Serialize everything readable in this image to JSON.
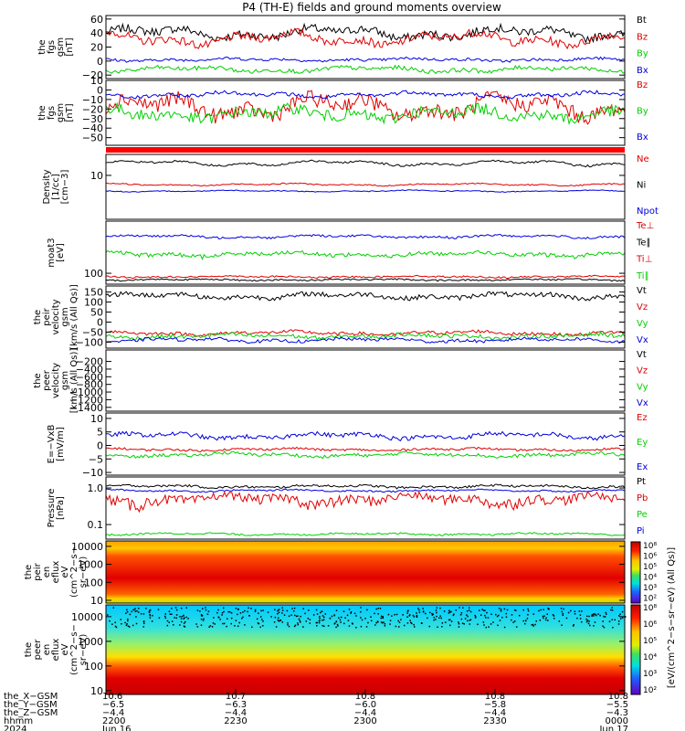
{
  "title": "P4 (TH-E) fields and ground moments overview",
  "colors": {
    "black": "#000000",
    "red": "#e00000",
    "green": "#00d000",
    "blue": "#0000e0",
    "strip": "#ff0000"
  },
  "panels": [
    {
      "id": "fgs-gsm",
      "ylabel": [
        "the",
        "fgs",
        "gsm",
        "[nT]"
      ],
      "scale": "linear",
      "ylim": [
        -25,
        65
      ],
      "ticks": [
        {
          "value": 60,
          "label": "60"
        },
        {
          "value": 40,
          "label": "40"
        },
        {
          "value": 20,
          "label": "20"
        },
        {
          "value": 0,
          "label": "0"
        },
        {
          "value": -20,
          "label": "−20"
        }
      ],
      "legend": [
        {
          "label": "Bt",
          "color": "black"
        },
        {
          "label": "Bz",
          "color": "red"
        },
        {
          "label": "By",
          "color": "green"
        },
        {
          "label": "Bx",
          "color": "blue"
        }
      ],
      "series": [
        {
          "color": "black",
          "mean": 40,
          "amp": 9,
          "wiggle": 6
        },
        {
          "color": "red",
          "mean": 32,
          "amp": 10,
          "wiggle": 6
        },
        {
          "color": "blue",
          "mean": 2,
          "amp": 2,
          "wiggle": 2
        },
        {
          "color": "green",
          "mean": -12,
          "amp": 4,
          "wiggle": 3
        }
      ]
    },
    {
      "id": "fgs-gsm-zoom",
      "ylabel": [
        "the",
        "fgs",
        "gsm",
        "[nT]"
      ],
      "scale": "linear",
      "ylim": [
        -58,
        10
      ],
      "ticks": [
        {
          "value": 10,
          "label": "10"
        },
        {
          "value": 0,
          "label": "0"
        },
        {
          "value": -10,
          "label": "−10"
        },
        {
          "value": -20,
          "label": "−20"
        },
        {
          "value": -30,
          "label": "−30"
        },
        {
          "value": -40,
          "label": "−40"
        },
        {
          "value": -50,
          "label": "−50"
        }
      ],
      "legend": [
        {
          "label": "Bz",
          "color": "red"
        },
        {
          "label": "By",
          "color": "green"
        },
        {
          "label": "Bx",
          "color": "blue"
        }
      ],
      "series": [
        {
          "color": "red",
          "mean": -18,
          "amp": 12,
          "wiggle": 8
        },
        {
          "color": "green",
          "mean": -25,
          "amp": 6,
          "wiggle": 6
        },
        {
          "color": "blue",
          "mean": -5,
          "amp": 3,
          "wiggle": 2
        }
      ]
    },
    {
      "id": "density",
      "ylabel": [
        "Density",
        "[1/cc]",
        "[cm−3]"
      ],
      "scale": "log",
      "ylim": [
        1,
        30
      ],
      "ticks": [
        {
          "value": 10,
          "label": "10"
        }
      ],
      "legend": [
        {
          "label": "Ne",
          "color": "red"
        },
        {
          "label": "Ni",
          "color": "black"
        },
        {
          "label": "Npot",
          "color": "blue"
        }
      ],
      "series": [
        {
          "color": "black",
          "mean": 19,
          "amp": 3,
          "wiggle": 1
        },
        {
          "color": "red",
          "mean": 6.2,
          "amp": 0.4,
          "wiggle": 0.2
        },
        {
          "color": "blue",
          "mean": 4.4,
          "amp": 0.2,
          "wiggle": 0.1
        }
      ]
    },
    {
      "id": "temperature",
      "ylabel": [
        "moat3",
        "[eV]"
      ],
      "scale": "log",
      "ylim": [
        40,
        8000
      ],
      "ticks": [
        {
          "value": 100,
          "label": "100"
        }
      ],
      "legend": [
        {
          "label": "Te⊥",
          "color": "red"
        },
        {
          "label": "Te∥",
          "color": "black"
        },
        {
          "label": "Ti⊥",
          "color": "red"
        },
        {
          "label": "Ti∥",
          "color": "green"
        }
      ],
      "series": [
        {
          "color": "blue",
          "mean": 2200,
          "amp": 300,
          "wiggle": 200
        },
        {
          "color": "green",
          "mean": 500,
          "amp": 100,
          "wiggle": 80
        },
        {
          "color": "red",
          "mean": 75,
          "amp": 5,
          "wiggle": 5
        },
        {
          "color": "black",
          "mean": 58,
          "amp": 4,
          "wiggle": 4
        }
      ]
    },
    {
      "id": "peir-velocity",
      "ylabel": [
        "the",
        "peir",
        "velocity",
        "gsm",
        "[km/s (All Qs)]"
      ],
      "scale": "linear",
      "ylim": [
        -130,
        180
      ],
      "ticks": [
        {
          "value": 150,
          "label": "150"
        },
        {
          "value": 100,
          "label": "100"
        },
        {
          "value": 50,
          "label": "50"
        },
        {
          "value": 0,
          "label": "0"
        },
        {
          "value": -50,
          "label": "−50"
        },
        {
          "value": -100,
          "label": "−100"
        }
      ],
      "legend": [
        {
          "label": "Vt",
          "color": "black"
        },
        {
          "label": "Vz",
          "color": "red"
        },
        {
          "label": "Vy",
          "color": "green"
        },
        {
          "label": "Vx",
          "color": "blue"
        }
      ],
      "series": [
        {
          "color": "black",
          "mean": 130,
          "amp": 15,
          "wiggle": 12
        },
        {
          "color": "red",
          "mean": -55,
          "amp": 10,
          "wiggle": 8
        },
        {
          "color": "green",
          "mean": -70,
          "amp": 10,
          "wiggle": 10
        },
        {
          "color": "blue",
          "mean": -90,
          "amp": 10,
          "wiggle": 8
        }
      ]
    },
    {
      "id": "peer-velocity",
      "ylabel": [
        "the",
        "peer",
        "velocity",
        "gsm",
        "[km/s (All Qs)]"
      ],
      "scale": "linear",
      "ylim": [
        -1500,
        100
      ],
      "ticks": [
        {
          "value": -200,
          "label": "−200"
        },
        {
          "value": -400,
          "label": "−400"
        },
        {
          "value": -600,
          "label": "−600"
        },
        {
          "value": -800,
          "label": "−800"
        },
        {
          "value": -1000,
          "label": "−1000"
        },
        {
          "value": -1200,
          "label": "−1200"
        },
        {
          "value": -1400,
          "label": "−1400"
        }
      ],
      "legend": [
        {
          "label": "Vt",
          "color": "black"
        },
        {
          "label": "Vz",
          "color": "red"
        },
        {
          "label": "Vy",
          "color": "green"
        },
        {
          "label": "Vx",
          "color": "blue"
        }
      ],
      "series": []
    },
    {
      "id": "efield",
      "ylabel": [
        "E=−VxB",
        "[mV/m]"
      ],
      "scale": "linear",
      "ylim": [
        -11,
        12
      ],
      "ticks": [
        {
          "value": 10,
          "label": "10"
        },
        {
          "value": 5,
          "label": "5"
        },
        {
          "value": 0,
          "label": "0"
        },
        {
          "value": -5,
          "label": "−5"
        },
        {
          "value": -10,
          "label": "−10"
        }
      ],
      "legend": [
        {
          "label": "Ez",
          "color": "red"
        },
        {
          "label": "Ey",
          "color": "green"
        },
        {
          "label": "Ex",
          "color": "blue"
        }
      ],
      "series": [
        {
          "color": "blue",
          "mean": 3.5,
          "amp": 1.2,
          "wiggle": 0.8
        },
        {
          "color": "red",
          "mean": -1.5,
          "amp": 0.5,
          "wiggle": 0.4
        },
        {
          "color": "green",
          "mean": -3.5,
          "amp": 0.8,
          "wiggle": 0.6
        }
      ]
    },
    {
      "id": "pressure",
      "ylabel": [
        "Pressure",
        "[nPa]"
      ],
      "scale": "log",
      "ylim": [
        0.04,
        2
      ],
      "ticks": [
        {
          "value": 1,
          "label": "1.0"
        },
        {
          "value": 0.1,
          "label": "0.1"
        }
      ],
      "legend": [
        {
          "label": "Pt",
          "color": "black"
        },
        {
          "label": "Pb",
          "color": "red"
        },
        {
          "label": "Pe",
          "color": "green"
        },
        {
          "label": "Pi",
          "color": "blue"
        }
      ],
      "series": [
        {
          "color": "black",
          "mean": 1.1,
          "amp": 0.1,
          "wiggle": 0.08
        },
        {
          "color": "blue",
          "mean": 0.85,
          "amp": 0.06,
          "wiggle": 0.04
        },
        {
          "color": "red",
          "mean": 0.5,
          "amp": 0.15,
          "wiggle": 0.15
        },
        {
          "color": "green",
          "mean": 0.055,
          "amp": 0.004,
          "wiggle": 0.003
        }
      ]
    },
    {
      "id": "peir-spectrogram",
      "ylabel": [
        "the",
        "peir",
        "en",
        "eflux",
        "eV",
        "(cm^2−s−",
        "sr−eV)"
      ],
      "scale": "log",
      "spectrogram": true,
      "ylim": [
        7,
        20000
      ],
      "ticks": [
        {
          "value": 10000,
          "label": "10000"
        },
        {
          "value": 1000,
          "label": "1000"
        },
        {
          "value": 100,
          "label": "100"
        },
        {
          "value": 10,
          "label": "10"
        }
      ],
      "legend": []
    },
    {
      "id": "peer-spectrogram",
      "ylabel": [
        "the",
        "peer",
        "en",
        "eflux",
        "eV",
        "(cm^2−s−",
        "sr−eV)"
      ],
      "scale": "log",
      "spectrogram": true,
      "ylim": [
        7,
        30000
      ],
      "ticks": [
        {
          "value": 10000,
          "label": "10000"
        },
        {
          "value": 1000,
          "label": "1000"
        },
        {
          "value": 100,
          "label": "100"
        },
        {
          "value": 10,
          "label": "10"
        }
      ],
      "legend": []
    }
  ],
  "colorbar": {
    "label": "[eV/(cm^2−s−sr−eV) (All Qs)]",
    "upper_ticks": [
      "10⁸",
      "10⁶",
      "10⁵",
      "10⁴",
      "10³",
      "10²"
    ],
    "lower_ticks": [
      "10⁸",
      "10⁶",
      "10⁵",
      "10⁴",
      "10³",
      "10²"
    ]
  },
  "xaxis": {
    "row_labels": [
      "the_X−GSM",
      "the_Y−GSM",
      "the_Z−GSM",
      "hhmm",
      "2024"
    ],
    "ticks": [
      {
        "values": [
          "10.6",
          "−6.5",
          "−4.4",
          "2200",
          "Jun 16"
        ]
      },
      {
        "values": [
          "10.7",
          "−6.3",
          "−4.4",
          "2230",
          ""
        ]
      },
      {
        "values": [
          "10.8",
          "−6.0",
          "−4.4",
          "2300",
          ""
        ]
      },
      {
        "values": [
          "10.8",
          "−5.8",
          "−4.4",
          "2330",
          ""
        ]
      },
      {
        "values": [
          "10.8",
          "−5.5",
          "−4.3",
          "0000",
          "Jun 17"
        ]
      }
    ]
  },
  "chart_data": {
    "type": "line",
    "title": "P4 (TH-E) fields and ground moments overview",
    "x_ticks_hhmm": [
      "2200",
      "2230",
      "2300",
      "2330",
      "0000"
    ],
    "x_dates": [
      "Jun 16",
      "Jun 17"
    ],
    "year": "2024",
    "panels": [
      {
        "ylabel": "the fgs gsm [nT]",
        "ylim": [
          -25,
          65
        ],
        "series": [
          {
            "name": "Bt",
            "typical": 40
          },
          {
            "name": "Bz",
            "typical": 32
          },
          {
            "name": "By",
            "typical": -12
          },
          {
            "name": "Bx",
            "typical": 2
          }
        ]
      },
      {
        "ylabel": "the fgs gsm [nT]",
        "ylim": [
          -58,
          10
        ],
        "series": [
          {
            "name": "Bz",
            "typical": -18
          },
          {
            "name": "By",
            "typical": -25
          },
          {
            "name": "Bx",
            "typical": -5
          }
        ]
      },
      {
        "ylabel": "Density [1/cc] [cm−3]",
        "scale": "log",
        "series": [
          {
            "name": "Ni",
            "typical": 19
          },
          {
            "name": "Ne",
            "typical": 6.2
          },
          {
            "name": "Npot",
            "typical": 4.4
          }
        ]
      },
      {
        "ylabel": "moat3 [eV]",
        "scale": "log",
        "series": [
          {
            "name": "Te∥",
            "typical": 58
          },
          {
            "name": "Ti⊥",
            "typical": 75
          },
          {
            "name": "Ti∥",
            "typical": 500
          }
        ]
      },
      {
        "ylabel": "the peir velocity gsm [km/s (All Qs)]",
        "ylim": [
          -130,
          180
        ],
        "series": [
          {
            "name": "Vt",
            "typical": 130
          },
          {
            "name": "Vz",
            "typical": -55
          },
          {
            "name": "Vy",
            "typical": -70
          },
          {
            "name": "Vx",
            "typical": -90
          }
        ]
      },
      {
        "ylabel": "the peer velocity gsm [km/s (All Qs)]",
        "ylim": [
          -1500,
          100
        ],
        "series": []
      },
      {
        "ylabel": "E=−VxB [mV/m]",
        "ylim": [
          -11,
          12
        ],
        "series": [
          {
            "name": "Ez",
            "typical": -1.5
          },
          {
            "name": "Ey",
            "typical": -3.5
          },
          {
            "name": "Ex",
            "typical": 3.5
          }
        ]
      },
      {
        "ylabel": "Pressure [nPa]",
        "scale": "log",
        "series": [
          {
            "name": "Pt",
            "typical": 1.1
          },
          {
            "name": "Pb",
            "typical": 0.5
          },
          {
            "name": "Pe",
            "typical": 0.055
          },
          {
            "name": "Pi",
            "typical": 0.85
          }
        ]
      }
    ]
  }
}
